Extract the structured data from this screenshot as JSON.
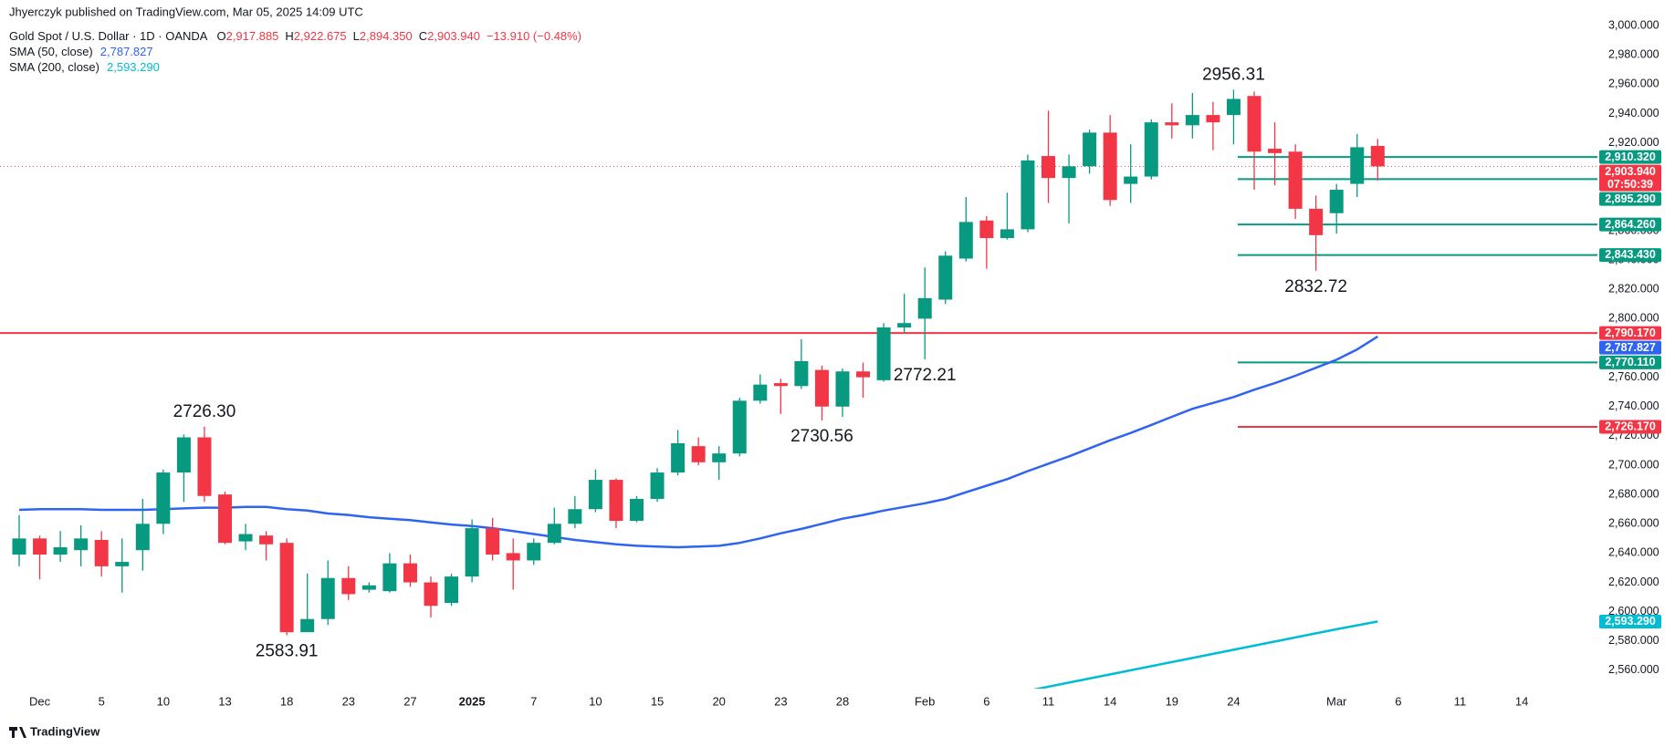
{
  "header": {
    "byline": "Jhyerczyk published on TradingView.com, Mar 05, 2025 14:09 UTC",
    "symbol": "Gold Spot / U.S. Dollar · 1D · OANDA",
    "ohlc": [
      {
        "key": "O",
        "value": "2,917.885"
      },
      {
        "key": "H",
        "value": "2,922.675"
      },
      {
        "key": "L",
        "value": "2,894.350"
      },
      {
        "key": "C",
        "value": "2,903.940"
      }
    ],
    "change": "−13.910 (−0.48%)"
  },
  "footer": {
    "brand": "TradingView"
  },
  "chart_data": {
    "type": "candlestick",
    "categories": [
      null,
      "Dec",
      null,
      null,
      "5",
      null,
      null,
      "10",
      null,
      null,
      "13",
      null,
      null,
      "18",
      null,
      null,
      "23",
      null,
      null,
      "27",
      null,
      null,
      "2025",
      null,
      null,
      "7",
      null,
      null,
      "10",
      null,
      null,
      "15",
      null,
      null,
      "20",
      null,
      null,
      "23",
      null,
      null,
      "28",
      null,
      null,
      null,
      "Feb",
      null,
      null,
      "6",
      null,
      null,
      "11",
      null,
      null,
      "14",
      null,
      null,
      "19",
      null,
      null,
      "24",
      null,
      null,
      null,
      null,
      "Mar",
      null,
      null,
      "6",
      null,
      null,
      "11",
      null,
      null,
      "14"
    ],
    "open": [
      2639,
      2650,
      2639,
      2642,
      2649,
      2631,
      2642,
      2660,
      2695,
      2719,
      2680,
      2648,
      2652,
      2647,
      2586,
      2595,
      2623,
      2615,
      2614,
      2633,
      2620,
      2606,
      2624,
      2657,
      2640,
      2635,
      2647,
      2660,
      2670,
      2690,
      2662,
      2677,
      2695,
      2713,
      2702,
      2708,
      2744,
      2756,
      2754,
      2765,
      2740,
      2764,
      2758,
      2794,
      2800,
      2813,
      2841,
      2867,
      2855,
      2861,
      2911,
      2896,
      2904,
      2927,
      2892,
      2897,
      2934,
      2932,
      2939,
      2939,
      2952,
      2916,
      2914,
      2875,
      2872,
      2892,
      2917.885,
      null,
      null,
      null,
      null,
      null,
      null,
      null
    ],
    "high": [
      2666,
      2652,
      2655,
      2659,
      2655,
      2650,
      2677,
      2697,
      2721,
      2726.3,
      2682,
      2660,
      2655,
      2650,
      2626,
      2635,
      2631,
      2620,
      2640,
      2639,
      2624,
      2626,
      2663,
      2664,
      2650,
      2650,
      2671,
      2679,
      2697,
      2691,
      2679,
      2698,
      2724,
      2719,
      2713,
      2746,
      2762,
      2759,
      2786,
      2768,
      2766,
      2770,
      2797,
      2817,
      2835,
      2846,
      2883,
      2870,
      2886,
      2912,
      2942,
      2912,
      2929,
      2939,
      2919,
      2936,
      2947,
      2954,
      2948,
      2956.31,
      2955,
      2934,
      2919,
      2884,
      2892,
      2926,
      2922.675,
      null,
      null,
      null,
      null,
      null,
      null,
      null
    ],
    "low": [
      2631,
      2622,
      2634,
      2631,
      2624,
      2613,
      2628,
      2653,
      2675,
      2675,
      2646,
      2642,
      2635,
      2583.91,
      2588,
      2591,
      2608,
      2613,
      2613,
      2617,
      2596,
      2604,
      2620,
      2635,
      2615,
      2632,
      2646,
      2657,
      2668,
      2657,
      2661,
      2675,
      2693,
      2700,
      2690,
      2706,
      2742,
      2735,
      2752,
      2730.56,
      2733,
      2746,
      2757,
      2790,
      2772.21,
      2810,
      2839,
      2834,
      2854,
      2859,
      2879,
      2865,
      2899,
      2877,
      2879,
      2895,
      2923,
      2923,
      2915,
      2919,
      2888,
      2891,
      2868,
      2832.72,
      2858,
      2883,
      2894.35,
      null,
      null,
      null,
      null,
      null,
      null,
      null
    ],
    "close": [
      2650,
      2639,
      2644,
      2650,
      2631,
      2634,
      2660,
      2695,
      2719,
      2679,
      2647,
      2653,
      2646,
      2586,
      2595,
      2623,
      2612,
      2618,
      2633,
      2620,
      2604,
      2624,
      2657,
      2639,
      2635,
      2647,
      2660,
      2670,
      2690,
      2662,
      2677,
      2695,
      2715,
      2702,
      2708,
      2744,
      2755,
      2754,
      2771,
      2740,
      2764,
      2760,
      2794,
      2797,
      2814,
      2843,
      2866,
      2855,
      2861,
      2908,
      2896,
      2904,
      2927,
      2881,
      2897,
      2934,
      2932,
      2939,
      2934,
      2950,
      2914,
      2913,
      2875,
      2857,
      2888,
      2917,
      2903.94,
      null,
      null,
      null,
      null,
      null,
      null,
      null
    ],
    "up_color": "#089981",
    "down_color": "#f23645",
    "last_label": "2,903.940",
    "countdown": "07:50:39",
    "lines": [
      {
        "name": "SMA (50, close)",
        "color": "#2f64f0",
        "axis_label": "2,787.827",
        "values": [
          2669.5,
          2670,
          2670,
          2670,
          2669.5,
          2669.5,
          2669.5,
          2670,
          2670.5,
          2671,
          2671,
          2671.5,
          2671.5,
          2670,
          2669,
          2667,
          2666,
          2664.5,
          2663.5,
          2662.5,
          2661,
          2659.5,
          2658.5,
          2657,
          2655,
          2653,
          2651,
          2649,
          2647.5,
          2646,
          2645,
          2644.5,
          2644,
          2644.5,
          2645,
          2647,
          2650,
          2653.5,
          2656.5,
          2660,
          2663.5,
          2666,
          2669,
          2671.5,
          2674,
          2677,
          2681.5,
          2686,
          2690.5,
          2696,
          2701,
          2706,
          2711.5,
          2717,
          2722,
          2727.5,
          2733,
          2738.5,
          2742.5,
          2746.5,
          2751.5,
          2756,
          2761,
          2766.5,
          2772,
          2779,
          2787.827,
          null,
          null,
          null,
          null,
          null,
          null,
          null
        ]
      },
      {
        "name": "SMA (200, close)",
        "color": "#00bcd4",
        "axis_label": "2,593.290",
        "values": [
          null,
          null,
          null,
          null,
          null,
          null,
          null,
          null,
          null,
          null,
          null,
          null,
          null,
          null,
          null,
          null,
          null,
          null,
          null,
          null,
          null,
          null,
          null,
          null,
          null,
          null,
          null,
          null,
          null,
          null,
          null,
          null,
          null,
          null,
          null,
          null,
          null,
          null,
          null,
          null,
          null,
          null,
          null,
          null,
          null,
          null,
          null,
          null,
          null,
          2546,
          2548.8,
          2551.6,
          2554.4,
          2557.2,
          2560,
          2562.8,
          2565.6,
          2568.4,
          2571.2,
          2574,
          2576.8,
          2579.6,
          2582.4,
          2585.2,
          2588,
          2590.7,
          2593.29,
          null,
          null,
          null,
          null,
          null,
          null,
          null
        ]
      }
    ],
    "levels": [
      {
        "value": 2910.32,
        "label": "2,910.320",
        "color": "#089981"
      },
      {
        "value": 2895.29,
        "label": "2,895.290",
        "color": "#089981"
      },
      {
        "value": 2864.26,
        "label": "2,864.260",
        "color": "#089981"
      },
      {
        "value": 2843.43,
        "label": "2,843.430",
        "color": "#089981"
      },
      {
        "value": 2790.17,
        "label": "2,790.170",
        "color": "#f23645",
        "extend": "left"
      },
      {
        "value": 2770.11,
        "label": "2,770.110",
        "color": "#089981"
      },
      {
        "value": 2726.17,
        "label": "2,726.170",
        "color": "#f23645"
      }
    ],
    "annotations": [
      {
        "value": 2956.31,
        "label": "2956.31"
      },
      {
        "value": 2832.72,
        "label": "2832.72"
      },
      {
        "value": 2772.21,
        "label": "2772.21"
      },
      {
        "value": 2730.56,
        "label": "2730.56"
      },
      {
        "value": 2726.3,
        "label": "2726.30"
      },
      {
        "value": 2583.91,
        "label": "2583.91"
      }
    ],
    "ylim": [
      2547.5,
      3017.5
    ],
    "yticks": [
      {
        "value": 2560,
        "label": "2,560.000"
      },
      {
        "value": 2580,
        "label": "2,580.000"
      },
      {
        "value": 2600,
        "label": "2,600.000"
      },
      {
        "value": 2620,
        "label": "2,620.000"
      },
      {
        "value": 2640,
        "label": "2,640.000"
      },
      {
        "value": 2660,
        "label": "2,660.000"
      },
      {
        "value": 2680,
        "label": "2,680.000"
      },
      {
        "value": 2700,
        "label": "2,700.000"
      },
      {
        "value": 2720,
        "label": "2,720.000"
      },
      {
        "value": 2740,
        "label": "2,740.000"
      },
      {
        "value": 2760,
        "label": "2,760.000"
      },
      {
        "value": 2780,
        "label": "2,780.000"
      },
      {
        "value": 2800,
        "label": "2,800.000"
      },
      {
        "value": 2820,
        "label": "2,820.000"
      },
      {
        "value": 2840,
        "label": "2,840.000"
      },
      {
        "value": 2860,
        "label": "2,860.000"
      },
      {
        "value": 2880,
        "label": "2,880.000"
      },
      {
        "value": 2900,
        "label": "2,900.000"
      },
      {
        "value": 2920,
        "label": "2,920.000"
      },
      {
        "value": 2940,
        "label": "2,940.000"
      },
      {
        "value": 2960,
        "label": "2,960.000"
      },
      {
        "value": 2980,
        "label": "2,980.000"
      },
      {
        "value": 3000,
        "label": "3,000.000"
      }
    ],
    "grid": false
  }
}
